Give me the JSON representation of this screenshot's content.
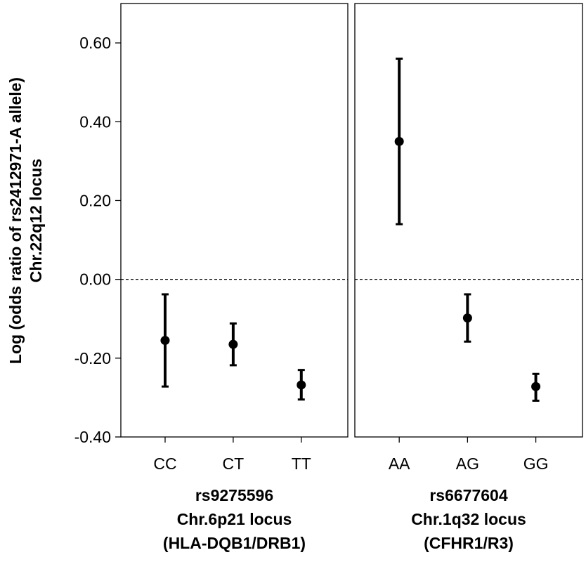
{
  "chart_data": {
    "type": "scatter",
    "ylabel_line1": "Log (odds ratio of rs2412971-A allele)",
    "ylabel_line2": "Chr.22q12 locus",
    "ylim": [
      -0.4,
      0.7
    ],
    "yticks": [
      "0.60",
      "0.40",
      "0.20",
      "0.00",
      "-0.20",
      "-0.40"
    ],
    "ytick_values": [
      0.6,
      0.4,
      0.2,
      0.0,
      -0.2,
      -0.4
    ],
    "reference_line": 0.0,
    "panels": [
      {
        "xlabel_lines": [
          "rs9275596",
          "Chr.6p21 locus",
          "(HLA-DQB1/DRB1)"
        ],
        "categories": [
          "CC",
          "CT",
          "TT"
        ],
        "estimates": [
          -0.155,
          -0.165,
          -0.268
        ],
        "lower": [
          -0.272,
          -0.218,
          -0.305
        ],
        "upper": [
          -0.038,
          -0.112,
          -0.23
        ]
      },
      {
        "xlabel_lines": [
          "rs6677604",
          "Chr.1q32 locus",
          "(CFHR1/R3)"
        ],
        "categories": [
          "AA",
          "AG",
          "GG"
        ],
        "estimates": [
          0.35,
          -0.098,
          -0.272
        ],
        "lower": [
          0.14,
          -0.158,
          -0.308
        ],
        "upper": [
          0.56,
          -0.038,
          -0.24
        ]
      }
    ]
  }
}
